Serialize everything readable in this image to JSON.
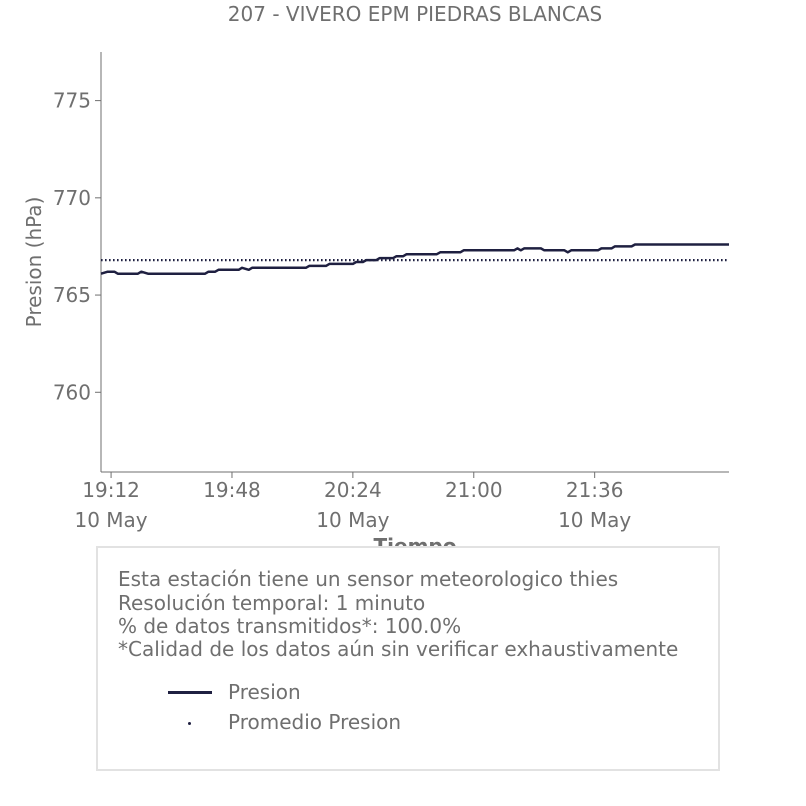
{
  "chart_data": {
    "type": "line",
    "title": "207 - VIVERO EPM PIEDRAS BLANCAS",
    "xlabel": "Tiempo",
    "ylabel": "Presion (hPa)",
    "ylim": [
      755.9,
      777.5
    ],
    "xlim": [
      "19:09",
      "22:16"
    ],
    "yticks": [
      760,
      765,
      770,
      775
    ],
    "xticks": [
      {
        "time": "19:12",
        "date": "10 May"
      },
      {
        "time": "19:48",
        "date": ""
      },
      {
        "time": "20:24",
        "date": "10 May"
      },
      {
        "time": "21:00",
        "date": ""
      },
      {
        "time": "21:36",
        "date": "10 May"
      }
    ],
    "grid": false,
    "series": [
      {
        "name": "Presion",
        "style": "solid",
        "color": "#1f2041",
        "points": [
          [
            "19:09",
            766.1
          ],
          [
            "19:11",
            766.2
          ],
          [
            "19:13",
            766.2
          ],
          [
            "19:14",
            766.1
          ],
          [
            "19:20",
            766.1
          ],
          [
            "19:21",
            766.2
          ],
          [
            "19:23",
            766.1
          ],
          [
            "19:40",
            766.1
          ],
          [
            "19:41",
            766.2
          ],
          [
            "19:43",
            766.2
          ],
          [
            "19:44",
            766.3
          ],
          [
            "19:50",
            766.3
          ],
          [
            "19:51",
            766.4
          ],
          [
            "19:53",
            766.3
          ],
          [
            "19:54",
            766.4
          ],
          [
            "20:10",
            766.4
          ],
          [
            "20:11",
            766.5
          ],
          [
            "20:16",
            766.5
          ],
          [
            "20:17",
            766.6
          ],
          [
            "20:24",
            766.6
          ],
          [
            "20:25",
            766.7
          ],
          [
            "20:27",
            766.7
          ],
          [
            "20:28",
            766.8
          ],
          [
            "20:31",
            766.8
          ],
          [
            "20:32",
            766.9
          ],
          [
            "20:36",
            766.9
          ],
          [
            "20:37",
            767.0
          ],
          [
            "20:39",
            767.0
          ],
          [
            "20:40",
            767.1
          ],
          [
            "20:49",
            767.1
          ],
          [
            "20:50",
            767.2
          ],
          [
            "20:56",
            767.2
          ],
          [
            "20:57",
            767.3
          ],
          [
            "21:12",
            767.3
          ],
          [
            "21:13",
            767.4
          ],
          [
            "21:14",
            767.3
          ],
          [
            "21:15",
            767.4
          ],
          [
            "21:20",
            767.4
          ],
          [
            "21:21",
            767.3
          ],
          [
            "21:27",
            767.3
          ],
          [
            "21:28",
            767.2
          ],
          [
            "21:29",
            767.3
          ],
          [
            "21:37",
            767.3
          ],
          [
            "21:38",
            767.4
          ],
          [
            "21:41",
            767.4
          ],
          [
            "21:42",
            767.5
          ],
          [
            "21:47",
            767.5
          ],
          [
            "21:48",
            767.6
          ],
          [
            "22:16",
            767.6
          ]
        ]
      },
      {
        "name": "Promedio Presion",
        "style": "dotted",
        "color": "#1f2041",
        "points": [
          [
            "19:09",
            766.8
          ],
          [
            "22:16",
            766.8
          ]
        ]
      }
    ]
  },
  "info": {
    "lines": [
      "Esta estación tiene un sensor meteorologico thies",
      "Resolución temporal: 1 minuto",
      "% de datos transmitidos*: 100.0%",
      "*Calidad de los datos aún sin verificar exhaustivamente"
    ]
  },
  "legend": {
    "items": [
      {
        "label": "Presion",
        "style": "solid"
      },
      {
        "label": "Promedio Presion",
        "style": "dotted"
      }
    ]
  },
  "colors": {
    "series": "#1f2041",
    "text": "#6f6f6f",
    "axis": "#6f6f6f",
    "box_border": "#e2e2e2"
  }
}
